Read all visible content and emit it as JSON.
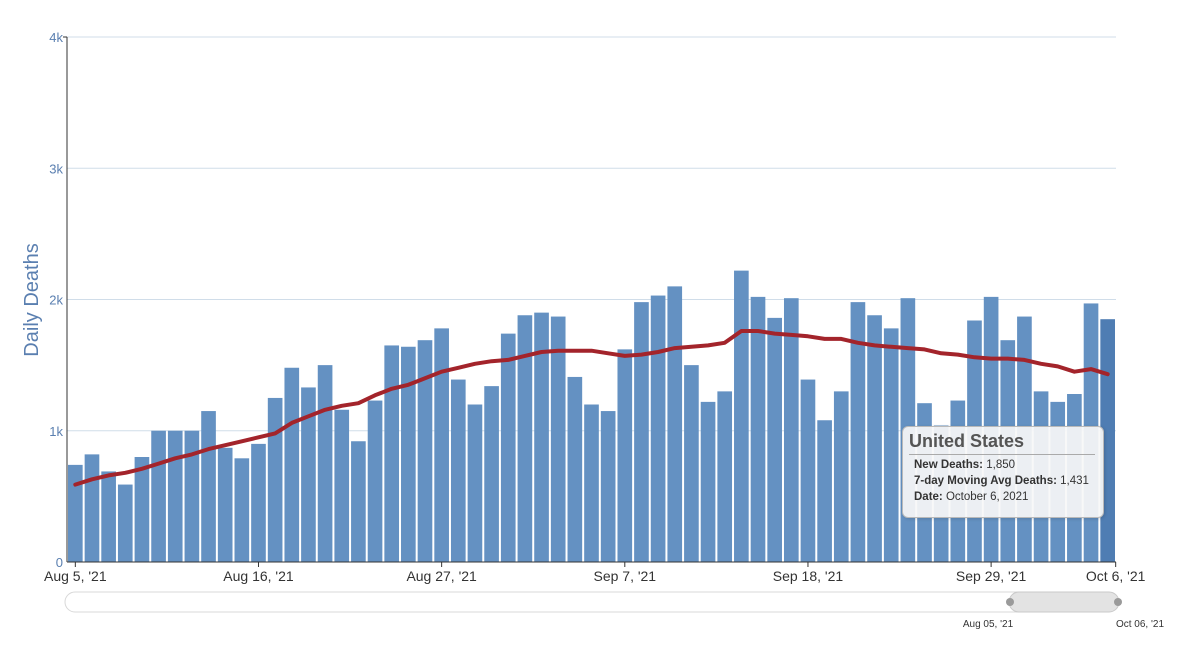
{
  "chart_data": {
    "type": "bar",
    "ylabel": "Daily Deaths",
    "ylim": [
      0,
      4000
    ],
    "yticks": [
      {
        "value": 0,
        "label": "0"
      },
      {
        "value": 1000,
        "label": "1k"
      },
      {
        "value": 2000,
        "label": "2k"
      },
      {
        "value": 3000,
        "label": "3k"
      },
      {
        "value": 4000,
        "label": "4k"
      }
    ],
    "xticks": [
      "Aug 5, '21",
      "Aug 16, '21",
      "Aug 27, '21",
      "Sep 7, '21",
      "Sep 18, '21",
      "Sep 29, '21",
      "Oct 6, '21"
    ],
    "x_start": "2021-08-05",
    "x_end": "2021-10-06",
    "grid": true,
    "series": [
      {
        "name": "New Deaths",
        "type": "bar",
        "color": "#6491c2",
        "values": [
          740,
          820,
          690,
          590,
          800,
          1000,
          1000,
          1000,
          1150,
          870,
          790,
          900,
          1250,
          1480,
          1330,
          1500,
          1160,
          920,
          1230,
          1650,
          1640,
          1690,
          1780,
          1390,
          1200,
          1340,
          1740,
          1880,
          1900,
          1870,
          1410,
          1200,
          1150,
          1620,
          1980,
          2030,
          2100,
          1500,
          1220,
          1300,
          2220,
          2020,
          1860,
          2010,
          1390,
          1080,
          1300,
          1980,
          1880,
          1780,
          2010,
          1210,
          1040,
          1230,
          1840,
          2020,
          1690,
          1870,
          1300,
          1220,
          1280,
          1970,
          1850
        ]
      },
      {
        "name": "7-day Moving Avg Deaths",
        "type": "line",
        "color": "#a3242b",
        "values": [
          590,
          630,
          660,
          680,
          710,
          750,
          790,
          820,
          860,
          890,
          920,
          950,
          980,
          1060,
          1110,
          1160,
          1190,
          1210,
          1270,
          1320,
          1350,
          1400,
          1450,
          1480,
          1510,
          1530,
          1540,
          1570,
          1600,
          1610,
          1610,
          1610,
          1590,
          1570,
          1580,
          1600,
          1630,
          1640,
          1650,
          1670,
          1760,
          1760,
          1740,
          1730,
          1720,
          1700,
          1700,
          1670,
          1650,
          1640,
          1630,
          1620,
          1590,
          1580,
          1560,
          1550,
          1550,
          1540,
          1510,
          1490,
          1450,
          1470,
          1431
        ]
      }
    ]
  },
  "tooltip": {
    "title": "United States",
    "new_deaths_label": "New Deaths:",
    "new_deaths_value": "1,850",
    "avg_label": "7-day Moving Avg Deaths:",
    "avg_value": "1,431",
    "date_label": "Date:",
    "date_value": "October 6, 2021"
  },
  "navigator": {
    "start_label": "Aug 05, '21",
    "end_label": "Oct 06, '21"
  }
}
